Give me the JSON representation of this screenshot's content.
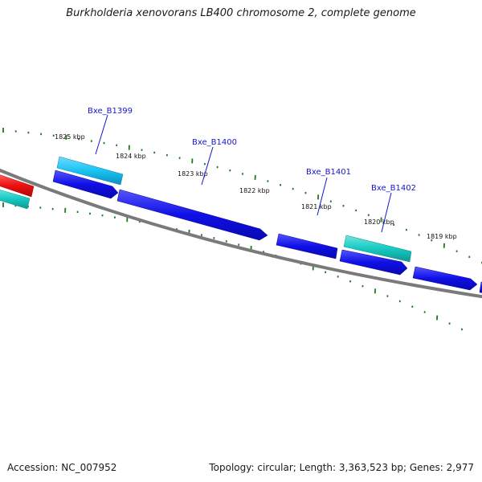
{
  "title": "Burkholderia xenovorans LB400 chromosome 2, complete genome",
  "accession": "Accession: NC_007952",
  "stats": "Topology: circular; Length: 3,363,523 bp; Genes: 2,977",
  "colors": {
    "backbone": "#7a7a7a",
    "tick": "#1e7a1e",
    "gene_blue": "#1010e6",
    "gene_skyblue": "#19c3f2",
    "gene_teal": "#17c9c2",
    "gene_red": "#ee1111",
    "label": "#1515d0"
  },
  "kbp_marks": [
    {
      "text": "1825 kbp"
    },
    {
      "text": "1824 kbp"
    },
    {
      "text": "1823 kbp"
    },
    {
      "text": "1822 kbp"
    },
    {
      "text": "1821 kbp"
    },
    {
      "text": "1820 kbp"
    },
    {
      "text": "1819 kbp"
    }
  ],
  "gene_labels": [
    {
      "text": "Bxe_B1399"
    },
    {
      "text": "Bxe_B1400"
    },
    {
      "text": "Bxe_B1401"
    },
    {
      "text": "Bxe_B1402"
    }
  ]
}
